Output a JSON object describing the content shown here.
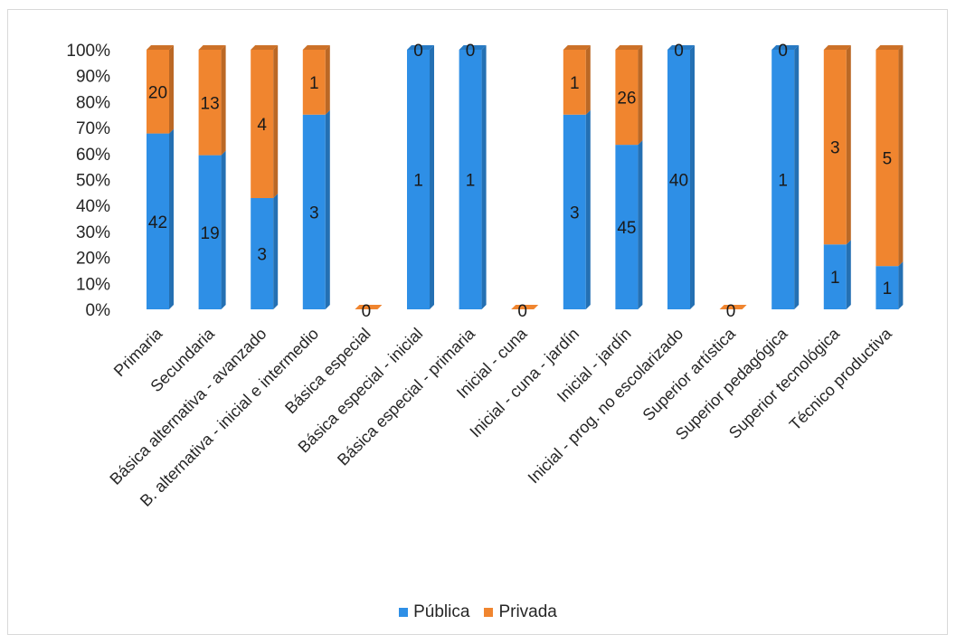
{
  "chart_data": {
    "type": "bar",
    "stacked": "percent",
    "categories": [
      "Primaria",
      "Secundaria",
      "Básica alternativa - avanzado",
      "B. alternativa - inicial e intermedio",
      "Básica especial",
      "Básica especial - inicial",
      "Básica especial - primaria",
      "Inicial - cuna",
      "Inicial - cuna - jardín",
      "Inicial - jardín",
      "Inicial - prog. no escolarizado",
      "Superior artística",
      "Superior pedagógica",
      "Superior tecnológica",
      "Técnico productiva"
    ],
    "series": [
      {
        "name": "Pública",
        "color": "#2e8fe6",
        "values": [
          42,
          19,
          3,
          3,
          0,
          1,
          1,
          0,
          3,
          45,
          40,
          0,
          1,
          1,
          1
        ]
      },
      {
        "name": "Privada",
        "color": "#f0852f",
        "values": [
          20,
          13,
          4,
          1,
          0,
          0,
          0,
          0,
          1,
          26,
          0,
          0,
          0,
          3,
          5
        ]
      }
    ],
    "y_ticks": [
      "0%",
      "10%",
      "20%",
      "30%",
      "40%",
      "50%",
      "60%",
      "70%",
      "80%",
      "90%",
      "100%"
    ],
    "ylim": [
      0,
      100
    ],
    "legend_position": "bottom",
    "grid": false
  }
}
